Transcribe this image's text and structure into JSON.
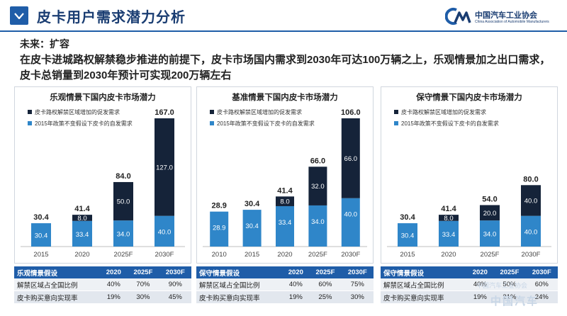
{
  "header": {
    "title": "皮卡用户需求潜力分析",
    "logo_cn": "中国汽车工业协会",
    "logo_en": "China Association of Automobile Manufacturers"
  },
  "subtitle": "未来：扩容",
  "summary": "在皮卡进城路权解禁稳步推进的前提下，皮卡市场国内需求到2030年可达100万辆之上，乐观情景加之出口需求，皮卡总销量到2030年预计可实现200万辆左右",
  "colors": {
    "primary": "#1f5da8",
    "top": "#152339",
    "base": "#2f86c9",
    "axis": "#bfbfbf"
  },
  "watermark": {
    "line1": "中国汽车工业协会",
    "line2": "中国汽车"
  },
  "chart_data": [
    {
      "type": "bar",
      "stacked": true,
      "title": "乐观情景下国内皮卡市场潜力",
      "categories": [
        "2015",
        "2020",
        "2025F",
        "2030F"
      ],
      "series": [
        {
          "name": "2015年政策不变假设下皮卡的自发需求",
          "values": [
            30.4,
            33.4,
            34.0,
            40.0
          ],
          "labels": [
            "30.4",
            "33.4",
            "34.0",
            "40.0"
          ]
        },
        {
          "name": "皮卡路权解禁区域增加的促发需求",
          "values": [
            0,
            8.0,
            50.0,
            127.0
          ],
          "labels": [
            "",
            "8.0",
            "50.0",
            "127.0"
          ]
        }
      ],
      "totals": [
        "30.4",
        "41.4",
        "84.0",
        "167.0"
      ],
      "ylim": [
        0,
        167
      ]
    },
    {
      "type": "bar",
      "stacked": true,
      "title": "基准情景下国内皮卡市场潜力",
      "categories": [
        "2010",
        "2015",
        "2020",
        "2025F",
        "2030F"
      ],
      "series": [
        {
          "name": "2015年政策不变假设下皮卡的自发需求",
          "values": [
            28.9,
            30.4,
            33.4,
            34.0,
            40.0
          ],
          "labels": [
            "28.9",
            "30.4",
            "33.4",
            "34.0",
            "40.0"
          ]
        },
        {
          "name": "皮卡路权解禁区域增加的促发需求",
          "values": [
            0,
            0,
            8.0,
            32.0,
            66.0
          ],
          "labels": [
            "",
            "",
            "8.0",
            "32.0",
            "66.0"
          ]
        }
      ],
      "totals": [
        "28.9",
        "30.4",
        "41.4",
        "66.0",
        "106.0"
      ],
      "ylim": [
        0,
        106
      ]
    },
    {
      "type": "bar",
      "stacked": true,
      "title": "保守情景下国内皮卡市场潜力",
      "categories": [
        "2015",
        "2020",
        "2025F",
        "2030F"
      ],
      "series": [
        {
          "name": "2015年政策不变假设下皮卡的自发需求",
          "values": [
            30.4,
            33.4,
            34.0,
            40.0
          ],
          "labels": [
            "30.4",
            "33.4",
            "34.0",
            "40.0"
          ]
        },
        {
          "name": "皮卡路权解禁区域增加的促发需求",
          "values": [
            0,
            8.0,
            20.0,
            40.0
          ],
          "labels": [
            "",
            "8.0",
            "20.0",
            "40.0"
          ]
        }
      ],
      "totals": [
        "30.4",
        "41.4",
        "54.0",
        "80.0"
      ],
      "ylim": [
        0,
        167
      ]
    }
  ],
  "tables": [
    {
      "headers": [
        "乐观情景假设",
        "2020",
        "2025F",
        "2030F"
      ],
      "rows": [
        [
          "解禁区域占全国比例",
          "40%",
          "70%",
          "90%"
        ],
        [
          "皮卡购买意向实现率",
          "19%",
          "30%",
          "45%"
        ]
      ]
    },
    {
      "headers": [
        "保守情景假设",
        "2020",
        "2025F",
        "2030F"
      ],
      "rows": [
        [
          "解禁区域占全国比例",
          "40%",
          "60%",
          "75%"
        ],
        [
          "皮卡购买意向实现率",
          "19%",
          "25%",
          "30%"
        ]
      ]
    },
    {
      "headers": [
        "保守情景假设",
        "2020",
        "2025F",
        "2030F"
      ],
      "rows": [
        [
          "解禁区域占全国比例",
          "40%",
          "50%",
          "60%"
        ],
        [
          "皮卡购买意向实现率",
          "19%",
          "21%",
          "24%"
        ]
      ]
    }
  ]
}
